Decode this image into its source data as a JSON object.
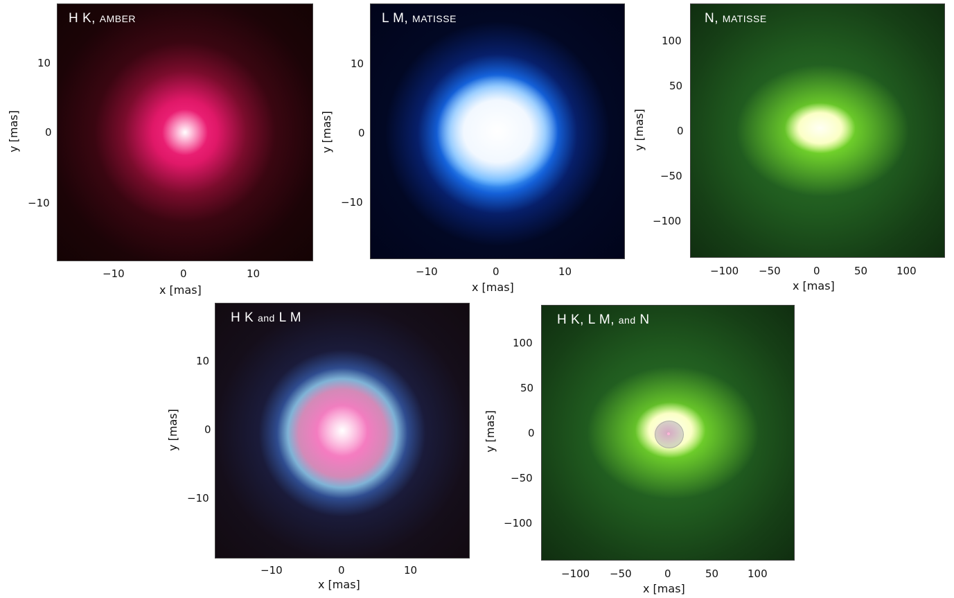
{
  "panels": {
    "hk": {
      "title_main": "H K,",
      "title_small": "AMBER",
      "xticks": [
        "−10",
        "0",
        "10"
      ],
      "yticks": [
        "10",
        "0",
        "−10"
      ],
      "xlabel": "x [mas]",
      "ylabel": "y [mas]"
    },
    "lm": {
      "title_main": "L M,",
      "title_small": "MATISSE",
      "xticks": [
        "−10",
        "0",
        "10"
      ],
      "yticks": [
        "10",
        "0",
        "−10"
      ],
      "xlabel": "x [mas]",
      "ylabel": "y [mas]"
    },
    "n": {
      "title_main": "N,",
      "title_small": "MATISSE",
      "xticks": [
        "−100",
        "−50",
        "0",
        "50",
        "100"
      ],
      "yticks": [
        "100",
        "50",
        "0",
        "−50",
        "−100"
      ],
      "xlabel": "x [mas]",
      "ylabel": "y [mas]"
    },
    "hklm": {
      "title_a": "H K",
      "title_b": "and",
      "title_c": "L M",
      "xticks": [
        "−10",
        "0",
        "10"
      ],
      "yticks": [
        "10",
        "0",
        "−10"
      ],
      "xlabel": "x [mas]",
      "ylabel": "y [mas]"
    },
    "all": {
      "title_a": "H K, L M,",
      "title_b": "and",
      "title_c": "N",
      "xticks": [
        "−100",
        "−50",
        "0",
        "50",
        "100"
      ],
      "yticks": [
        "100",
        "50",
        "0",
        "−50",
        "−100"
      ],
      "xlabel": "x [mas]",
      "ylabel": "y [mas]"
    }
  }
}
